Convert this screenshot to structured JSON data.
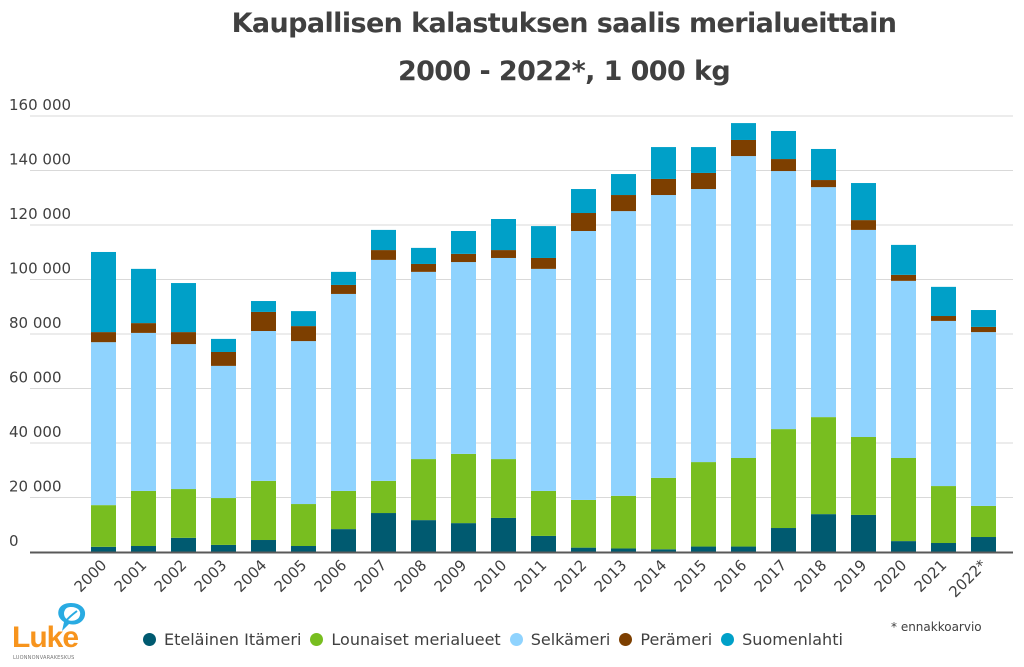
{
  "chart_data": {
    "type": "bar",
    "stacked": true,
    "title": "Kaupallisen kalastuksen saalis merialueittain",
    "subtitle": "2000 - 2022*, 1 000 kg",
    "xlabel": "",
    "ylabel": "",
    "ylim": [
      0,
      160000
    ],
    "yticks": [
      0,
      20000,
      40000,
      60000,
      80000,
      100000,
      120000,
      140000,
      160000
    ],
    "ytick_labels": [
      "0",
      "20 000",
      "40 000",
      "60 000",
      "80 000",
      "100 000",
      "120 000",
      "140 000",
      "160 000"
    ],
    "grid": true,
    "legend_position": "bottom",
    "categories": [
      "2000",
      "2001",
      "2002",
      "2003",
      "2004",
      "2005",
      "2006",
      "2007",
      "2008",
      "2009",
      "2010",
      "2011",
      "2012",
      "2013",
      "2014",
      "2015",
      "2016",
      "2017",
      "2018",
      "2019",
      "2020",
      "2021",
      "2022*"
    ],
    "series": [
      {
        "name": "Eteläinen Itämeri",
        "color": "#005a70",
        "values": [
          1900,
          2200,
          5200,
          2600,
          4400,
          2200,
          8400,
          14300,
          11700,
          10600,
          12500,
          5900,
          1600,
          1300,
          1000,
          2000,
          2000,
          8800,
          13900,
          13600,
          4000,
          3300,
          5500
        ]
      },
      {
        "name": "Lounaiset merialueet",
        "color": "#78be20",
        "values": [
          15300,
          20200,
          17900,
          17200,
          21700,
          15400,
          14000,
          11800,
          22400,
          25400,
          21600,
          16500,
          17500,
          19300,
          26200,
          31000,
          32500,
          36300,
          35600,
          28600,
          30500,
          20900,
          11400
        ]
      },
      {
        "name": "Selkämeri",
        "color": "#8fd3fe",
        "values": [
          59800,
          58000,
          53200,
          48500,
          55000,
          59800,
          72300,
          81100,
          68700,
          70400,
          73800,
          81500,
          98700,
          104500,
          103800,
          100200,
          110800,
          94700,
          84400,
          76000,
          65000,
          60600,
          63800
        ]
      },
      {
        "name": "Perämeri",
        "color": "#7d3f00",
        "values": [
          3700,
          3600,
          4400,
          5100,
          7000,
          5500,
          3300,
          3600,
          2900,
          3000,
          2900,
          4000,
          6600,
          5900,
          5900,
          5900,
          5900,
          4400,
          2600,
          3600,
          2200,
          1800,
          1900
        ]
      },
      {
        "name": "Suomenlahti",
        "color": "#00a0c8",
        "values": [
          29400,
          19900,
          18000,
          4800,
          4000,
          5500,
          4800,
          7400,
          5900,
          8400,
          11400,
          11700,
          8800,
          7700,
          11700,
          9500,
          6200,
          10300,
          11400,
          13600,
          11000,
          10700,
          6200
        ]
      }
    ],
    "footnote": "* ennakkoarvio"
  },
  "logo": {
    "name": "Luke",
    "subtitle": "LUONNONVARAKESKUS",
    "orange": "#f7941d",
    "blue": "#29abe2"
  },
  "colors": {
    "grid": "#d9d9d9",
    "axis": "#595959",
    "text": "#404040"
  }
}
